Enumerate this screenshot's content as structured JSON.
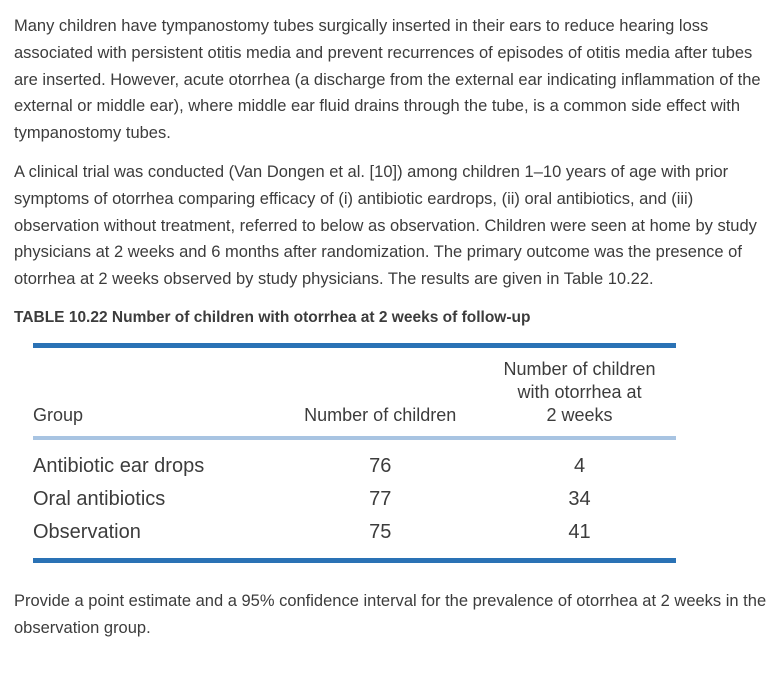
{
  "document": {
    "paragraph_intro": "Many children have tympanostomy tubes surgically inserted in their ears to reduce hearing loss associated with persistent otitis media and prevent recurrences of episodes of otitis media after tubes are inserted. However, acute otorrhea (a discharge from the external ear indicating inflammation of the external or middle ear), where middle ear fluid drains through the tube, is a common side effect with tympanostomy tubes.",
    "paragraph_trial": "A clinical trial was conducted (Van Dongen et al. [10]) among children 1–10 years of age with prior symptoms of otorrhea comparing efficacy of (i) antibiotic eardrops, (ii) oral antibiotics, and (iii) observation without treatment, referred to below as observation. Children were seen at home by study physicians at 2 weeks and 6 months after randomization. The primary outcome was the presence of otorrhea at 2 weeks observed by study physicians. The results are given in Table 10.22.",
    "question": "Provide a point estimate and a 95% confidence interval for the prevalence of otorrhea at 2 weeks in the observation group."
  },
  "table": {
    "title": "TABLE 10.22 Number of children with otorrhea at 2 weeks of follow-up",
    "columns": {
      "group": "Group",
      "number_of_children": "Number of children",
      "otorrhea_at_2_weeks": "Number of children\nwith otorrhea at\n2 weeks"
    },
    "rows": [
      {
        "group": "Antibiotic ear drops",
        "number_of_children": "76",
        "otorrhea_at_2_weeks": "4"
      },
      {
        "group": "Oral antibiotics",
        "number_of_children": "77",
        "otorrhea_at_2_weeks": "34"
      },
      {
        "group": "Observation",
        "number_of_children": "75",
        "otorrhea_at_2_weeks": "41"
      }
    ],
    "colors": {
      "rule_dark_blue": "#2a72b5",
      "rule_light_blue": "#a8c4e2",
      "text": "#3c3c3c"
    }
  }
}
